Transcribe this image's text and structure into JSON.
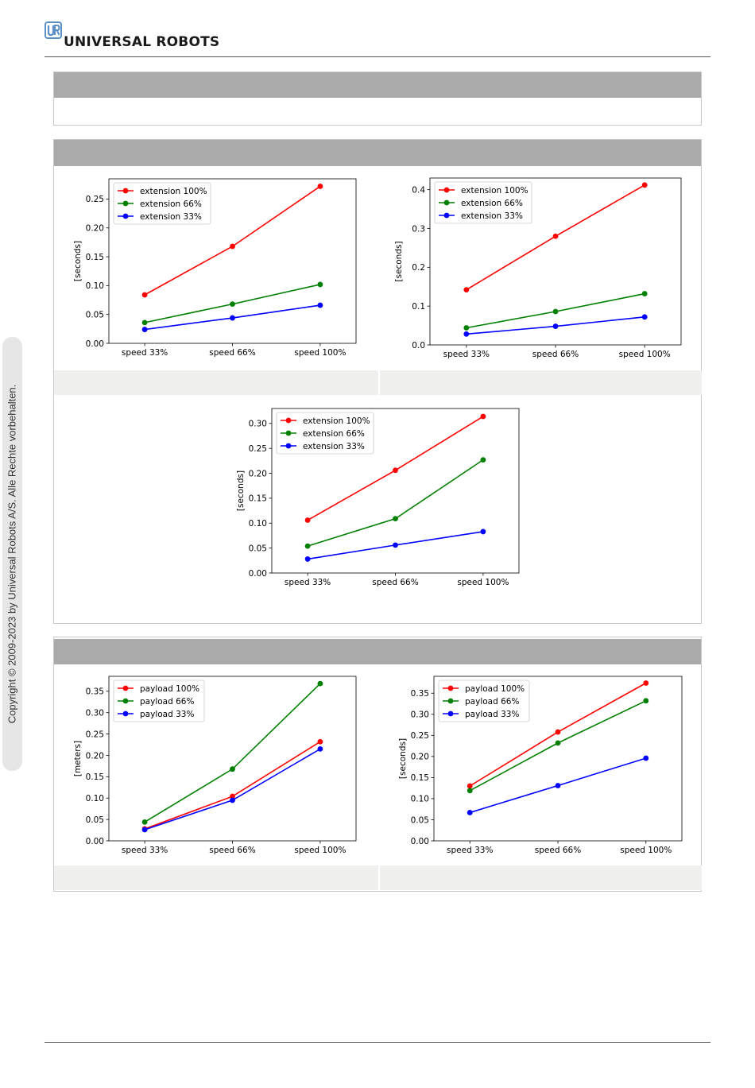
{
  "header": {
    "brand": "UNIVERSAL ROBOTS"
  },
  "sidebar": {
    "copyright": "Copyright © 2009-2023 by Universal Robots A/S. Alle Rechte vorbehalten."
  },
  "colors": {
    "red": "#ff0000",
    "green": "#008000",
    "blue": "#0000ff",
    "header_gray": "#aaaaaa",
    "caption_gray": "#f0f0ef"
  },
  "chart_data": [
    {
      "type": "line",
      "categories": [
        "speed 33%",
        "speed 66%",
        "speed 100%"
      ],
      "ylabel": "[seconds]",
      "ylim": [
        0,
        0.285
      ],
      "yticks": [
        "0.00",
        "0.05",
        "0.10",
        "0.15",
        "0.20",
        "0.25"
      ],
      "legend": "upper left",
      "series": [
        {
          "name": "extension 100%",
          "color": "#ff0000",
          "values": [
            0.084,
            0.168,
            0.272
          ]
        },
        {
          "name": "extension 66%",
          "color": "#008000",
          "values": [
            0.036,
            0.068,
            0.102
          ]
        },
        {
          "name": "extension 33%",
          "color": "#0000ff",
          "values": [
            0.024,
            0.044,
            0.066
          ]
        }
      ]
    },
    {
      "type": "line",
      "categories": [
        "speed 33%",
        "speed 66%",
        "speed 100%"
      ],
      "ylabel": "[seconds]",
      "ylim": [
        0,
        0.43
      ],
      "yticks": [
        "0.0",
        "0.1",
        "0.2",
        "0.3",
        "0.4"
      ],
      "legend": "upper left",
      "series": [
        {
          "name": "extension 100%",
          "color": "#ff0000",
          "values": [
            0.142,
            0.28,
            0.412
          ]
        },
        {
          "name": "extension 66%",
          "color": "#008000",
          "values": [
            0.044,
            0.086,
            0.132
          ]
        },
        {
          "name": "extension 33%",
          "color": "#0000ff",
          "values": [
            0.028,
            0.048,
            0.072
          ]
        }
      ]
    },
    {
      "type": "line",
      "categories": [
        "speed 33%",
        "speed 66%",
        "speed 100%"
      ],
      "ylabel": "[seconds]",
      "ylim": [
        0,
        0.33
      ],
      "yticks": [
        "0.00",
        "0.05",
        "0.10",
        "0.15",
        "0.20",
        "0.25",
        "0.30"
      ],
      "legend": "upper left",
      "series": [
        {
          "name": "extension 100%",
          "color": "#ff0000",
          "values": [
            0.106,
            0.206,
            0.314
          ]
        },
        {
          "name": "extension 66%",
          "color": "#008000",
          "values": [
            0.054,
            0.109,
            0.227
          ]
        },
        {
          "name": "extension 33%",
          "color": "#0000ff",
          "values": [
            0.028,
            0.056,
            0.083
          ]
        }
      ]
    },
    {
      "type": "line",
      "categories": [
        "speed 33%",
        "speed 66%",
        "speed 100%"
      ],
      "ylabel": "[meters]",
      "ylim": [
        0,
        0.385
      ],
      "yticks": [
        "0.00",
        "0.05",
        "0.10",
        "0.15",
        "0.20",
        "0.25",
        "0.30",
        "0.35"
      ],
      "legend": "upper left",
      "series": [
        {
          "name": "payload 100%",
          "color": "#ff0000",
          "values": [
            0.028,
            0.104,
            0.232
          ]
        },
        {
          "name": "payload 66%",
          "color": "#008000",
          "values": [
            0.044,
            0.168,
            0.368
          ]
        },
        {
          "name": "payload 33%",
          "color": "#0000ff",
          "values": [
            0.026,
            0.095,
            0.215
          ]
        }
      ]
    },
    {
      "type": "line",
      "categories": [
        "speed 33%",
        "speed 66%",
        "speed 100%"
      ],
      "ylabel": "[seconds]",
      "ylim": [
        0,
        0.39
      ],
      "yticks": [
        "0.00",
        "0.05",
        "0.10",
        "0.15",
        "0.20",
        "0.25",
        "0.30",
        "0.35"
      ],
      "legend": "upper left",
      "series": [
        {
          "name": "payload 100%",
          "color": "#ff0000",
          "values": [
            0.13,
            0.258,
            0.374
          ]
        },
        {
          "name": "payload 66%",
          "color": "#008000",
          "values": [
            0.119,
            0.232,
            0.332
          ]
        },
        {
          "name": "payload 33%",
          "color": "#0000ff",
          "values": [
            0.067,
            0.131,
            0.196
          ]
        }
      ]
    }
  ]
}
